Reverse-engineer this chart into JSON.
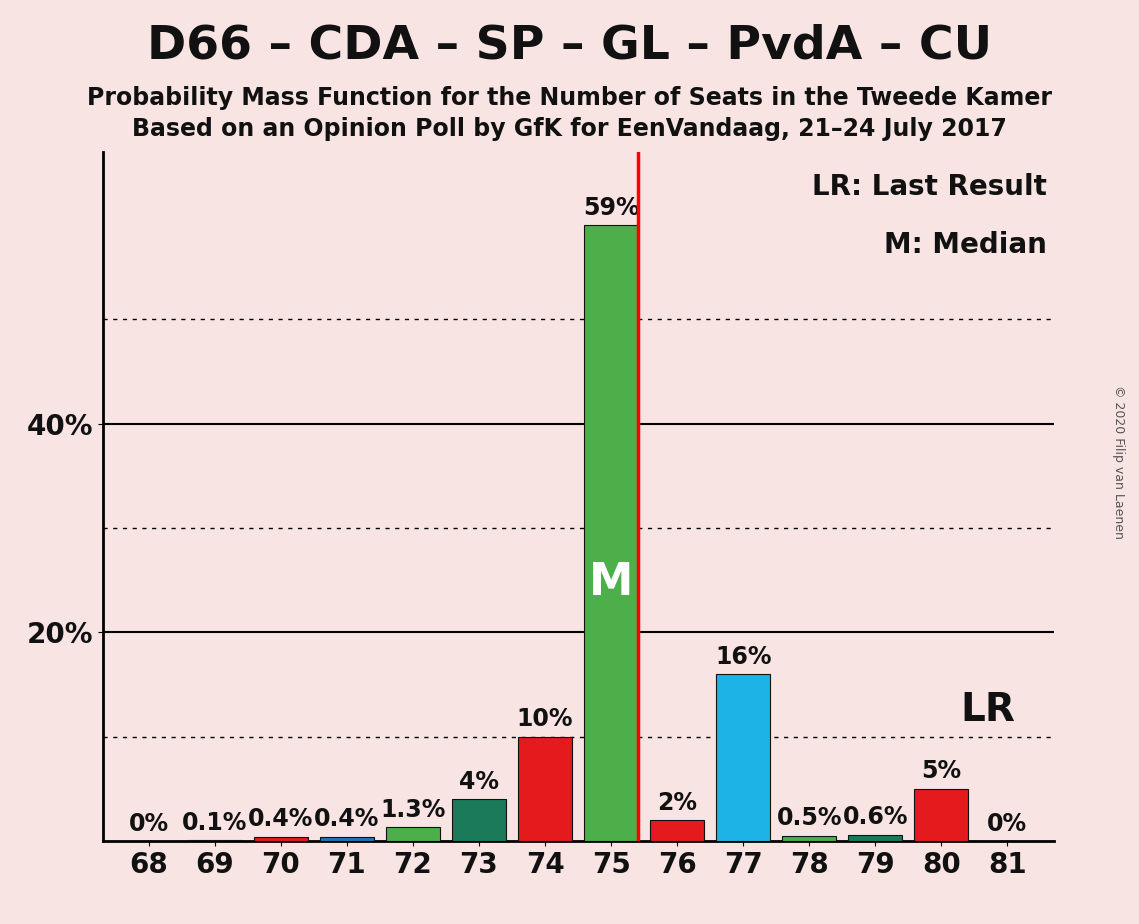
{
  "title": "D66 – CDA – SP – GL – PvdA – CU",
  "subtitle1": "Probability Mass Function for the Number of Seats in the Tweede Kamer",
  "subtitle2": "Based on an Opinion Poll by GfK for EenVandaag, 21–24 July 2017",
  "copyright": "© 2020 Filip van Laenen",
  "seats": [
    68,
    69,
    70,
    71,
    72,
    73,
    74,
    75,
    76,
    77,
    78,
    79,
    80,
    81
  ],
  "values": [
    0.0,
    0.1,
    0.4,
    0.4,
    1.3,
    4.0,
    10.0,
    59.0,
    2.0,
    16.0,
    0.5,
    0.6,
    5.0,
    0.0
  ],
  "labels": [
    "0%",
    "0.1%",
    "0.4%",
    "0.4%",
    "1.3%",
    "4%",
    "10%",
    "59%",
    "2%",
    "16%",
    "0.5%",
    "0.6%",
    "5%",
    "0%"
  ],
  "colors": [
    "#4daf4a",
    "#4daf4a",
    "#e41a1c",
    "#1f78b4",
    "#4daf4a",
    "#1a7a59",
    "#e41a1c",
    "#4daf4a",
    "#e41a1c",
    "#1eb3e6",
    "#4daf4a",
    "#1a7a59",
    "#e41a1c",
    "#4daf4a"
  ],
  "median_seat": 75,
  "last_result_seat": 75,
  "background_color": "#f9e4e4",
  "legend_lr": "LR: Last Result",
  "legend_m": "M: Median",
  "median_label": "M",
  "lr_label": "LR",
  "ylim_max": 66,
  "solid_yticks": [
    20,
    40
  ],
  "dotted_yticks": [
    10,
    30,
    50
  ],
  "ytick_positions": [
    20,
    40
  ],
  "ytick_labels": [
    "20%",
    "40%"
  ],
  "title_fontsize": 34,
  "subtitle_fontsize": 17,
  "tick_fontsize": 20,
  "label_fontsize": 17,
  "legend_fontsize": 20,
  "median_fontsize": 32,
  "lr_fontsize": 28,
  "bar_width": 0.82
}
